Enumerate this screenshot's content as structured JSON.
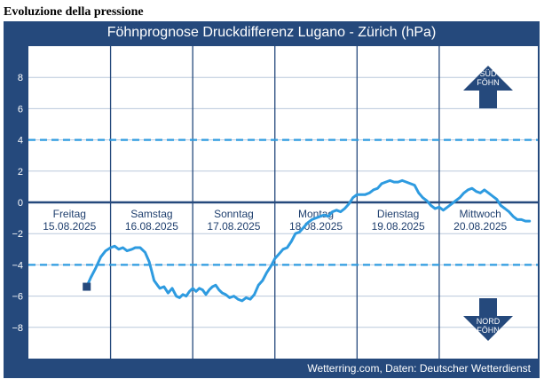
{
  "page": {
    "heading": "Evoluzione della pressione"
  },
  "chart_data": {
    "type": "line",
    "title": "Föhnprognose Druckdifferenz Lugano - Zürich (hPa)",
    "source": "Wetterring.com, Daten: Deutscher Wetterdienst",
    "ylim": [
      -10,
      10
    ],
    "xlim": [
      0,
      6.2
    ],
    "y_ticks": [
      8,
      6,
      4,
      2,
      0,
      -2,
      -4,
      -6,
      -8
    ],
    "y_tick_labels": [
      "8",
      "6",
      "4",
      "2",
      "0",
      "−2",
      "−4",
      "−6",
      "−8"
    ],
    "threshold_lines": [
      4,
      -4
    ],
    "zero_line": 0,
    "day_dividers": [
      1,
      2,
      3,
      4,
      5
    ],
    "days": [
      {
        "name": "Freitag",
        "date": "15.08.2025",
        "x": 0.5
      },
      {
        "name": "Samstag",
        "date": "16.08.2025",
        "x": 1.5
      },
      {
        "name": "Sonntag",
        "date": "17.08.2025",
        "x": 2.5
      },
      {
        "name": "Montag",
        "date": "18.08.2025",
        "x": 3.5
      },
      {
        "name": "Dienstag",
        "date": "19.08.2025",
        "x": 4.5
      },
      {
        "name": "Mittwoch",
        "date": "20.08.2025",
        "x": 5.5
      }
    ],
    "indicators": {
      "south_label_1": "SÜD",
      "south_label_2": "FÖHN",
      "north_label_1": "NORD",
      "north_label_2": "FÖHN"
    },
    "colors": {
      "frame": "#25497c",
      "plot_bg": "#ffffff",
      "line": "#2e9be0",
      "dashed": "#2e9be0",
      "grid": "#b9c8dc",
      "divider": "#25497c",
      "arrow": "#25497c",
      "marker": "#25497c"
    },
    "current_marker": {
      "x": 0.71,
      "y": -5.4
    },
    "series": [
      {
        "x": [
          0.71,
          0.76,
          0.82,
          0.88,
          0.94,
          1.0,
          1.05,
          1.1,
          1.15,
          1.2,
          1.26,
          1.3,
          1.36,
          1.42,
          1.47,
          1.5,
          1.53,
          1.57,
          1.6,
          1.65,
          1.7,
          1.75,
          1.8,
          1.84,
          1.88,
          1.92,
          1.96,
          2.0,
          2.04,
          2.08,
          2.12,
          2.16,
          2.2,
          2.24,
          2.28,
          2.32,
          2.36,
          2.4,
          2.45,
          2.5,
          2.55,
          2.6,
          2.65,
          2.7,
          2.75,
          2.8,
          2.85,
          2.9,
          2.95,
          3.0,
          3.05,
          3.1,
          3.15,
          3.2,
          3.25,
          3.3,
          3.35,
          3.4,
          3.45,
          3.5,
          3.55,
          3.6,
          3.65,
          3.7,
          3.75,
          3.8,
          3.85,
          3.9,
          3.95,
          4.0,
          4.05,
          4.1,
          4.15,
          4.2,
          4.25,
          4.3,
          4.35,
          4.4,
          4.45,
          4.5,
          4.55,
          4.6,
          4.65,
          4.7,
          4.75,
          4.8,
          4.85,
          4.9,
          4.95,
          5.0,
          5.05,
          5.1,
          5.15,
          5.2,
          5.25,
          5.3,
          5.35,
          5.4,
          5.45,
          5.5,
          5.55,
          5.6,
          5.65,
          5.7,
          5.75,
          5.8,
          5.85,
          5.9,
          5.95,
          6.0,
          6.05,
          6.1
        ],
        "y": [
          -5.4,
          -4.8,
          -4.2,
          -3.5,
          -3.1,
          -2.9,
          -2.8,
          -3.0,
          -2.9,
          -3.1,
          -3.0,
          -2.9,
          -2.9,
          -3.2,
          -3.8,
          -4.4,
          -5.0,
          -5.3,
          -5.5,
          -5.4,
          -5.8,
          -5.5,
          -6.0,
          -6.1,
          -5.9,
          -6.0,
          -5.7,
          -5.5,
          -5.7,
          -5.5,
          -5.6,
          -5.9,
          -5.6,
          -5.4,
          -5.3,
          -5.6,
          -5.8,
          -5.9,
          -6.1,
          -6.0,
          -6.2,
          -6.3,
          -6.1,
          -6.2,
          -5.9,
          -5.3,
          -5.0,
          -4.5,
          -4.1,
          -3.6,
          -3.3,
          -3.0,
          -2.9,
          -2.5,
          -2.0,
          -1.9,
          -1.6,
          -1.3,
          -1.1,
          -1.0,
          -0.9,
          -0.8,
          -0.9,
          -0.6,
          -0.5,
          -0.6,
          -0.4,
          -0.1,
          0.3,
          0.5,
          0.5,
          0.5,
          0.6,
          0.8,
          0.9,
          1.2,
          1.3,
          1.4,
          1.3,
          1.3,
          1.4,
          1.3,
          1.2,
          1.1,
          0.6,
          0.3,
          0.1,
          -0.2,
          -0.4,
          -0.3,
          -0.5,
          -0.3,
          -0.1,
          0.1,
          0.3,
          0.6,
          0.8,
          0.9,
          0.7,
          0.6,
          0.8,
          0.6,
          0.4,
          0.2,
          -0.2,
          -0.4,
          -0.6,
          -0.9,
          -1.1,
          -1.1,
          -1.2,
          -1.2
        ]
      }
    ]
  }
}
